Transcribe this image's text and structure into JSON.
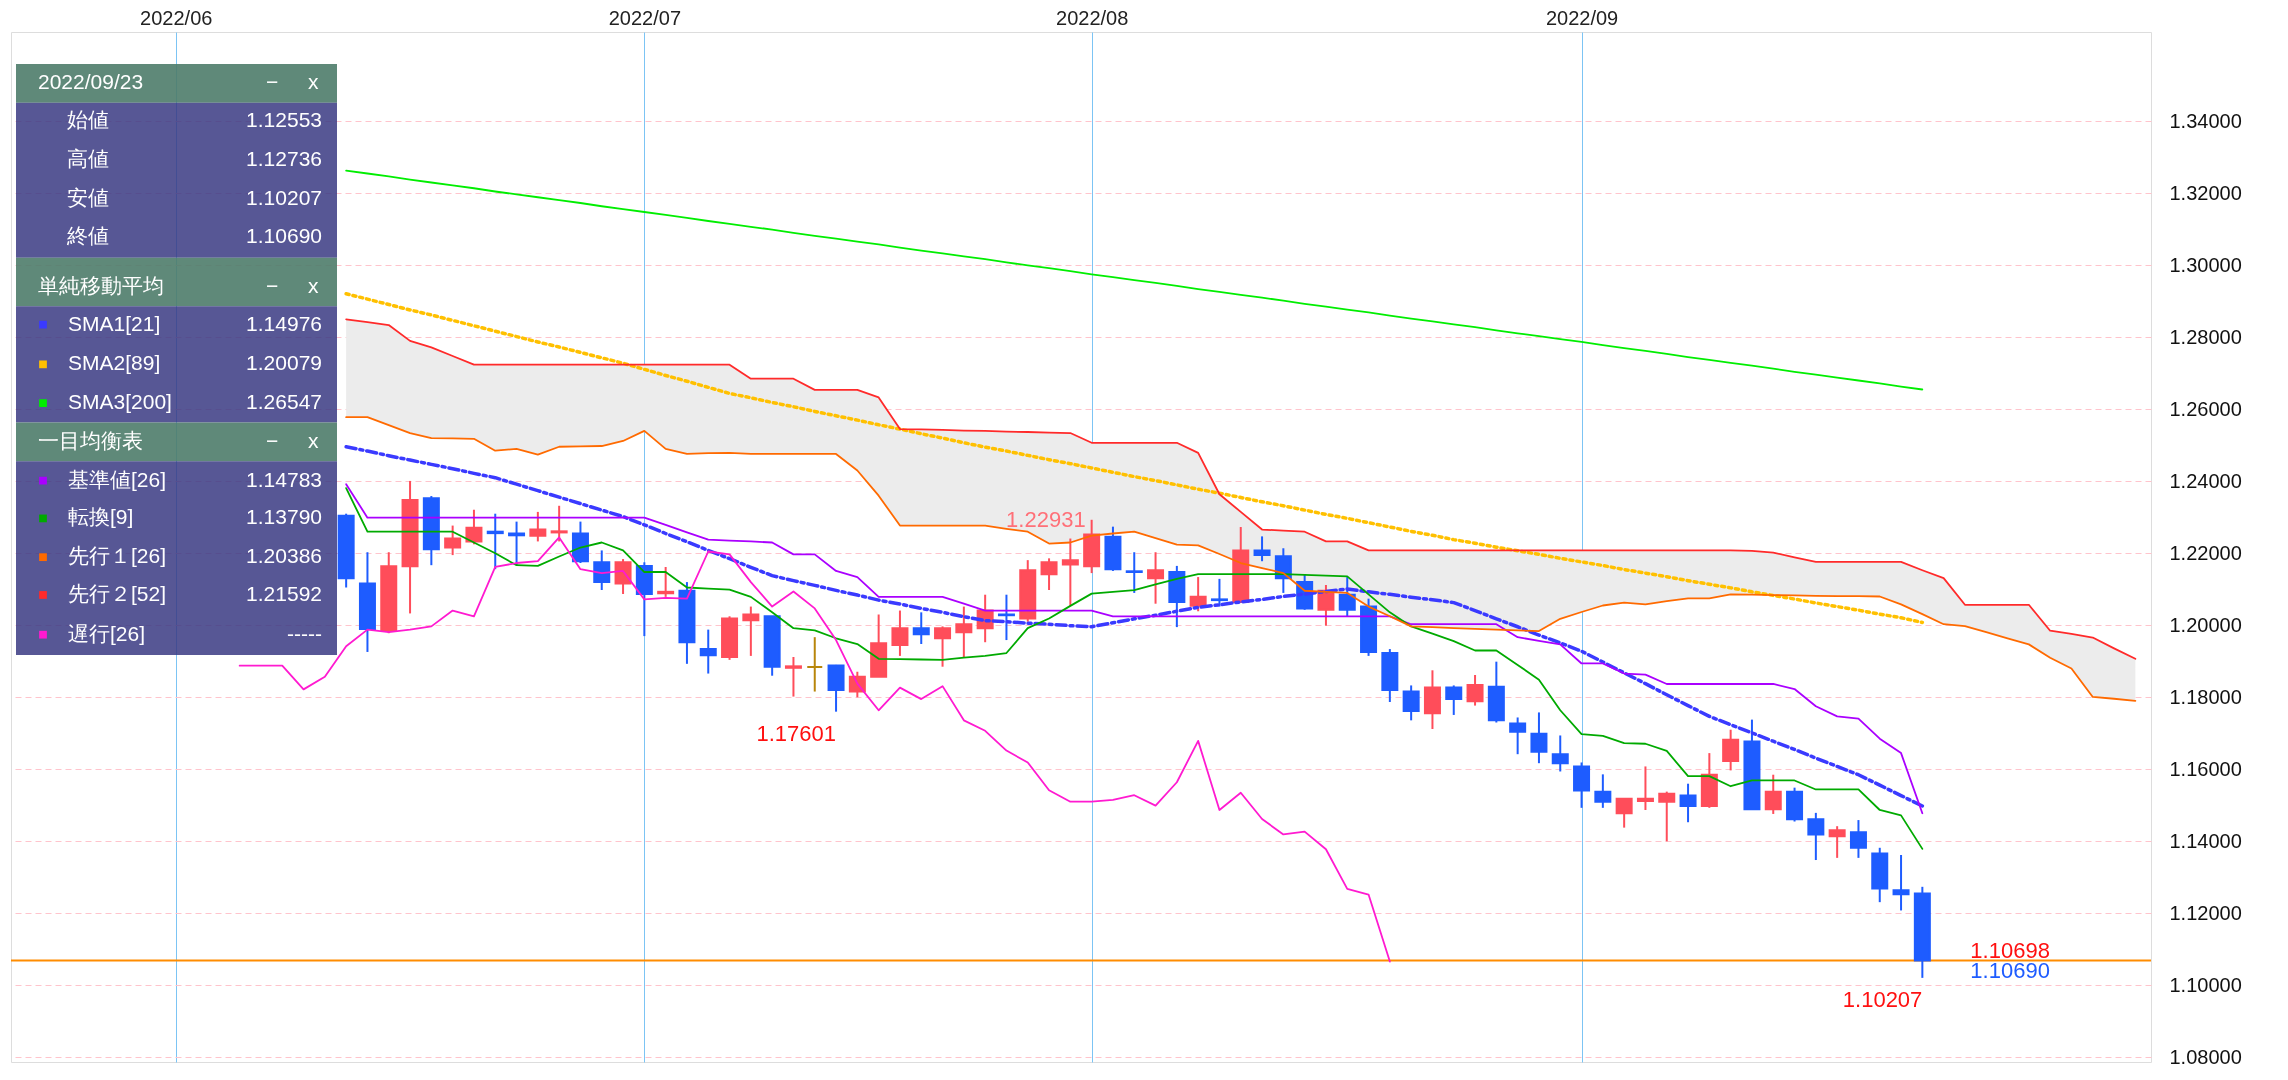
{
  "chart_data": {
    "type": "candlestick",
    "categories": [
      null,
      null,
      null,
      null,
      null,
      null,
      null,
      "2022/06",
      null,
      null,
      null,
      null,
      null,
      null,
      null,
      null,
      null,
      null,
      null,
      null,
      null,
      null,
      null,
      null,
      null,
      null,
      null,
      null,
      null,
      "2022/07",
      null,
      null,
      null,
      null,
      null,
      null,
      null,
      null,
      null,
      null,
      null,
      null,
      null,
      null,
      null,
      null,
      null,
      null,
      null,
      null,
      "2022/08",
      null,
      null,
      null,
      null,
      null,
      null,
      null,
      null,
      null,
      null,
      null,
      null,
      null,
      null,
      null,
      null,
      null,
      null,
      null,
      null,
      null,
      null,
      "2022/09",
      null,
      null,
      null,
      null,
      null,
      null,
      null,
      null,
      null,
      null,
      null,
      null,
      null,
      null,
      null,
      null,
      null,
      null,
      null,
      null,
      null,
      null,
      null,
      null,
      null,
      null
    ],
    "ylim": [
      1.0787,
      1.3648
    ],
    "yticks": [
      {
        "value": 1.08,
        "label": "1.08000"
      },
      {
        "value": 1.1,
        "label": "1.10000"
      },
      {
        "value": 1.12,
        "label": "1.12000"
      },
      {
        "value": 1.14,
        "label": "1.14000"
      },
      {
        "value": 1.16,
        "label": "1.16000"
      },
      {
        "value": 1.18,
        "label": "1.18000"
      },
      {
        "value": 1.2,
        "label": "1.20000"
      },
      {
        "value": 1.22,
        "label": "1.22000"
      },
      {
        "value": 1.24,
        "label": "1.24000"
      },
      {
        "value": 1.26,
        "label": "1.26000"
      },
      {
        "value": 1.28,
        "label": "1.28000"
      },
      {
        "value": 1.3,
        "label": "1.30000"
      },
      {
        "value": 1.32,
        "label": "1.32000"
      },
      {
        "value": 1.34,
        "label": "1.34000"
      }
    ],
    "grid": true,
    "legend": "top left",
    "ohlc": [
      null,
      null,
      null,
      null,
      null,
      null,
      null,
      null,
      null,
      null,
      null,
      null,
      null,
      null,
      null,
      [
        1.2304,
        1.231,
        1.2105,
        1.2131
      ],
      [
        1.2116,
        1.2203,
        1.1926,
        1.199
      ],
      [
        1.1984,
        1.2203,
        1.1978,
        1.2164
      ],
      [
        1.2164,
        1.2401,
        1.2033,
        1.2348
      ],
      [
        1.2353,
        1.2359,
        1.2167,
        1.2211
      ],
      [
        1.2216,
        1.2277,
        1.2195,
        1.2241
      ],
      [
        1.2233,
        1.2321,
        1.2225,
        1.2271
      ],
      [
        1.226,
        1.231,
        1.2156,
        1.2256
      ],
      [
        1.2255,
        1.2288,
        1.2167,
        1.225
      ],
      [
        1.2249,
        1.2315,
        1.2233,
        1.2266
      ],
      [
        1.2258,
        1.2332,
        1.2233,
        1.2261
      ],
      [
        1.2255,
        1.2288,
        1.2173,
        1.2178
      ],
      [
        1.2175,
        1.2208,
        1.2098,
        1.212
      ],
      [
        1.2116,
        1.2184,
        1.2087,
        1.2175
      ],
      [
        1.2165,
        1.2175,
        1.197,
        1.2087
      ],
      [
        1.2089,
        1.2162,
        1.2079,
        1.2093
      ],
      [
        1.2096,
        1.212,
        1.1893,
        1.1953
      ],
      [
        1.1934,
        1.1988,
        1.1866,
        1.1917
      ],
      [
        1.1912,
        1.2025,
        1.1904,
        1.2019
      ],
      [
        1.2014,
        1.2052,
        1.1915,
        1.203
      ],
      [
        1.2025,
        1.2025,
        1.186,
        1.1885
      ],
      [
        1.1882,
        1.1912,
        1.1802,
        1.1886
      ],
      [
        1.1884,
        1.1967,
        1.1816,
        1.1884
      ],
      [
        1.1888,
        1.189,
        1.17601,
        1.182
      ],
      [
        1.1816,
        1.1871,
        1.18,
        1.1857
      ],
      [
        1.1857,
        1.203,
        1.1857,
        1.195
      ],
      [
        1.1945,
        1.2041,
        1.1915,
        1.1992
      ],
      [
        1.1992,
        1.2036,
        1.1948,
        1.1975
      ],
      [
        1.1964,
        1.1997,
        1.1885,
        1.1992
      ],
      [
        1.1981,
        1.2052,
        1.191,
        1.2003
      ],
      [
        1.1992,
        1.2085,
        1.1953,
        1.2041
      ],
      [
        1.203,
        1.2085,
        1.1959,
        1.2028
      ],
      [
        1.2019,
        1.2181,
        1.201,
        1.2153
      ],
      [
        1.2142,
        1.2186,
        1.2098,
        1.2175
      ],
      [
        1.2169,
        1.2241,
        1.2054,
        1.2181
      ],
      [
        1.2164,
        1.22931,
        1.2145,
        1.2252
      ],
      [
        1.2246,
        1.2274,
        1.2151,
        1.2156
      ],
      [
        1.215,
        1.2203,
        1.209,
        1.2148
      ],
      [
        1.2131,
        1.2203,
        1.206,
        1.2153
      ],
      [
        1.2148,
        1.2165,
        1.1995,
        1.2065
      ],
      [
        1.2054,
        1.2134,
        1.2039,
        1.2079
      ],
      [
        1.2072,
        1.2129,
        1.2052,
        1.207
      ],
      [
        1.2065,
        1.2273,
        1.2065,
        1.2208
      ],
      [
        1.2208,
        1.2247,
        1.2178,
        1.2195
      ],
      [
        1.2192,
        1.2214,
        1.209,
        1.2131
      ],
      [
        1.212,
        1.2142,
        1.2043,
        1.2047
      ],
      [
        1.2043,
        1.2112,
        1.1999,
        1.2096
      ],
      [
        1.2085,
        1.2134,
        1.2025,
        1.2043
      ],
      [
        1.2052,
        1.2074,
        1.1915,
        1.1926
      ],
      [
        1.1923,
        1.1934,
        1.1787,
        1.182
      ],
      [
        1.1816,
        1.1833,
        1.1736,
        1.1762
      ],
      [
        1.1756,
        1.1875,
        1.1712,
        1.1827
      ],
      [
        1.1827,
        1.1833,
        1.1751,
        1.1795
      ],
      [
        1.1789,
        1.1862,
        1.1777,
        1.1834
      ],
      [
        1.1829,
        1.1899,
        1.173,
        1.1736
      ],
      [
        1.1727,
        1.1744,
        1.1642,
        1.1704
      ],
      [
        1.1699,
        1.1758,
        1.1617,
        1.1649
      ],
      [
        1.1642,
        1.1694,
        1.1594,
        1.1617
      ],
      [
        1.1608,
        1.1619,
        1.1493,
        1.1541
      ],
      [
        1.1538,
        1.1586,
        1.1493,
        1.151
      ],
      [
        1.1478,
        1.1518,
        1.1438,
        1.1518
      ],
      [
        1.1512,
        1.1608,
        1.1487,
        1.1518
      ],
      [
        1.151,
        1.1538,
        1.14,
        1.1532
      ],
      [
        1.1527,
        1.156,
        1.1453,
        1.1498
      ],
      [
        1.1498,
        1.1645,
        1.1493,
        1.1585
      ],
      [
        1.1623,
        1.171,
        1.1597,
        1.1682
      ],
      [
        1.1677,
        1.1738,
        1.1489,
        1.1489
      ],
      [
        1.1489,
        1.1585,
        1.1476,
        1.1538
      ],
      [
        1.1538,
        1.1549,
        1.1455,
        1.1461
      ],
      [
        1.1461,
        1.1479,
        1.1348,
        1.1419
      ],
      [
        1.1414,
        1.1442,
        1.1354,
        1.1431
      ],
      [
        1.1425,
        1.1459,
        1.1354,
        1.1382
      ],
      [
        1.1366,
        1.1382,
        1.1231,
        1.1269
      ],
      [
        1.1264,
        1.1362,
        1.1208,
        1.1253
      ],
      [
        1.12553,
        1.12736,
        1.10207,
        1.1069
      ],
      null,
      null,
      null,
      null,
      null,
      null,
      null,
      null,
      null,
      null
    ],
    "colors": [
      null,
      null,
      null,
      null,
      null,
      null,
      null,
      null,
      null,
      null,
      null,
      null,
      null,
      null,
      null,
      "#1e5cff",
      "#1e5cff",
      "#ff4d5a",
      "#ff4d5a",
      "#1e5cff",
      "#ff4d5a",
      "#ff4d5a",
      "#1e5cff",
      "#1e5cff",
      "#ff4d5a",
      "#ff4d5a",
      "#1e5cff",
      "#1e5cff",
      "#ff4d5a",
      "#1e5cff",
      "#ff4d5a",
      "#1e5cff",
      "#1e5cff",
      "#ff4d5a",
      "#ff4d5a",
      "#1e5cff",
      "#ff4d5a",
      "#b8860b",
      "#1e5cff",
      "#ff4d5a",
      "#ff4d5a",
      "#ff4d5a",
      "#1e5cff",
      "#ff4d5a",
      "#ff4d5a",
      "#ff4d5a",
      "#1e5cff",
      "#ff4d5a",
      "#ff4d5a",
      "#ff4d5a",
      "#ff4d5a",
      "#1e5cff",
      "#1e5cff",
      "#ff4d5a",
      "#1e5cff",
      "#ff4d5a",
      "#1e5cff",
      "#ff4d5a",
      "#1e5cff",
      "#1e5cff",
      "#1e5cff",
      "#ff4d5a",
      "#1e5cff",
      "#1e5cff",
      "#1e5cff",
      "#1e5cff",
      "#ff4d5a",
      "#1e5cff",
      "#ff4d5a",
      "#1e5cff",
      "#1e5cff",
      "#1e5cff",
      "#1e5cff",
      "#1e5cff",
      "#1e5cff",
      "#ff4d5a",
      "#ff4d5a",
      "#ff4d5a",
      "#1e5cff",
      "#ff4d5a",
      "#ff4d5a",
      "#1e5cff",
      "#ff4d5a",
      "#1e5cff",
      "#1e5cff",
      "#ff4d5a",
      "#1e5cff",
      "#1e5cff",
      "#1e5cff",
      "#1e5cff",
      null,
      null,
      null,
      null,
      null,
      null,
      null,
      null,
      null,
      null
    ],
    "series": [
      {
        "type": "line",
        "name": "SMA1[21]",
        "color": "#3a3aff",
        "line_style": "dashed",
        "values": [
          null,
          null,
          null,
          null,
          null,
          null,
          null,
          null,
          null,
          null,
          null,
          null,
          null,
          null,
          null,
          1.2496,
          1.2484,
          1.2471,
          1.2459,
          1.2447,
          1.2435,
          1.2422,
          1.241,
          1.2392,
          1.2374,
          1.2356,
          1.2338,
          1.232,
          1.2302,
          1.2279,
          1.2255,
          1.2232,
          1.2208,
          1.2185,
          1.2161,
          1.2138,
          1.2124,
          1.2111,
          1.2097,
          1.2084,
          1.207,
          1.2059,
          1.2047,
          1.2036,
          1.2024,
          1.2013,
          1.201,
          1.2006,
          1.2003,
          1.1999,
          1.1996,
          1.2007,
          1.2018,
          1.2028,
          1.2039,
          1.205,
          1.2057,
          1.2065,
          1.2072,
          1.208,
          1.2087,
          1.2094,
          1.2101,
          1.2093,
          1.2086,
          1.2078,
          1.2071,
          1.2063,
          1.2041,
          1.2018,
          1.1996,
          1.1973,
          1.1951,
          1.1928,
          1.1898,
          1.1868,
          1.1838,
          1.1807,
          1.1777,
          1.1747,
          1.1724,
          1.1701,
          1.1678,
          1.1655,
          1.1631,
          1.1608,
          1.1585,
          1.1556,
          1.1527,
          1.1498,
          null,
          null,
          null,
          null,
          null,
          null,
          null,
          null,
          null,
          null
        ]
      },
      {
        "type": "line",
        "name": "SMA2[89]",
        "color": "#ffc000",
        "line_style": "dotted",
        "values": [
          null,
          null,
          null,
          null,
          null,
          null,
          null,
          null,
          null,
          null,
          null,
          null,
          null,
          null,
          null,
          1.2921,
          1.2906,
          1.2891,
          1.2876,
          1.2862,
          1.2847,
          1.2832,
          1.2817,
          1.2802,
          1.2787,
          1.2773,
          1.2758,
          1.2743,
          1.2728,
          1.2711,
          1.2694,
          1.2678,
          1.2661,
          1.2644,
          1.2632,
          1.2619,
          1.2607,
          1.2594,
          1.2582,
          1.257,
          1.2557,
          1.2545,
          1.2532,
          1.252,
          1.2507,
          1.2495,
          1.2484,
          1.2472,
          1.246,
          1.2449,
          1.2437,
          1.2425,
          1.2413,
          1.2402,
          1.239,
          1.2378,
          1.2367,
          1.2355,
          1.2343,
          1.2332,
          1.232,
          1.2308,
          1.2297,
          1.2285,
          1.2273,
          1.2261,
          1.225,
          1.2238,
          1.2228,
          1.2217,
          1.2207,
          1.2197,
          1.2186,
          1.2176,
          1.2166,
          1.2155,
          1.2145,
          1.2135,
          1.2124,
          1.2114,
          1.2104,
          1.2093,
          1.2083,
          1.2073,
          1.2062,
          1.2052,
          1.2042,
          1.2031,
          1.2021,
          1.2008,
          null,
          null,
          null,
          null,
          null,
          null,
          null,
          null,
          null,
          null
        ]
      },
      {
        "type": "line",
        "name": "SMA3[200]",
        "color": "#00ee00",
        "line_style": "solid",
        "values": [
          null,
          null,
          null,
          null,
          null,
          null,
          null,
          null,
          null,
          null,
          null,
          null,
          null,
          null,
          null,
          1.3263,
          1.3255,
          1.3247,
          1.3238,
          1.323,
          1.3222,
          1.3214,
          1.3205,
          1.3197,
          1.3189,
          1.3181,
          1.3173,
          1.3164,
          1.3156,
          1.3148,
          1.314,
          1.3132,
          1.3123,
          1.3115,
          1.3107,
          1.3099,
          1.309,
          1.3082,
          1.3074,
          1.3066,
          1.3058,
          1.3049,
          1.3041,
          1.3033,
          1.3025,
          1.3017,
          1.3008,
          1.3,
          1.2992,
          1.2984,
          1.2975,
          1.2967,
          1.2959,
          1.2951,
          1.2943,
          1.2934,
          1.2926,
          1.2918,
          1.291,
          1.2902,
          1.2893,
          1.2885,
          1.2877,
          1.2869,
          1.286,
          1.2852,
          1.2844,
          1.2836,
          1.2828,
          1.2819,
          1.2811,
          1.2803,
          1.2795,
          1.2787,
          1.2778,
          1.277,
          1.2762,
          1.2754,
          1.2745,
          1.2737,
          1.2729,
          1.2721,
          1.2713,
          1.2704,
          1.2696,
          1.2688,
          1.268,
          1.2672,
          1.2663,
          1.2655,
          null,
          null,
          null,
          null,
          null,
          null,
          null,
          null,
          null,
          null
        ]
      },
      {
        "type": "line",
        "name": "基準値[26]",
        "color": "#aa00ff",
        "line_style": "solid",
        "values": [
          null,
          null,
          null,
          null,
          null,
          null,
          null,
          null,
          null,
          null,
          null,
          null,
          null,
          null,
          null,
          1.2392,
          1.2299,
          1.2299,
          1.2299,
          1.2299,
          1.2299,
          1.2299,
          1.2299,
          1.2299,
          1.2299,
          1.2299,
          1.2299,
          1.2299,
          1.2299,
          1.2299,
          1.2279,
          1.2258,
          1.2238,
          1.2235,
          1.2233,
          1.223,
          1.2197,
          1.2197,
          1.2151,
          1.2134,
          1.2079,
          1.2079,
          1.2079,
          1.2079,
          1.206,
          1.2041,
          1.2041,
          1.2041,
          1.2041,
          1.2041,
          1.2041,
          1.2025,
          1.2025,
          1.2025,
          1.2025,
          1.2025,
          1.2025,
          1.2025,
          1.2025,
          1.2025,
          1.2025,
          1.2025,
          1.2025,
          1.2025,
          1.2025,
          1.2003,
          1.2003,
          1.2003,
          1.2003,
          1.2003,
          1.1967,
          1.1957,
          1.1947,
          1.1894,
          1.1894,
          1.1866,
          1.1863,
          1.1837,
          1.1837,
          1.1837,
          1.1837,
          1.1837,
          1.1837,
          1.1823,
          1.1775,
          1.1747,
          1.1741,
          1.1685,
          1.1645,
          1.1478,
          null,
          null,
          null,
          null,
          null,
          null,
          null,
          null,
          null,
          null
        ]
      },
      {
        "type": "line",
        "name": "転換[9]",
        "color": "#00aa00",
        "line_style": "solid",
        "values": [
          null,
          null,
          null,
          null,
          null,
          null,
          null,
          null,
          null,
          null,
          null,
          null,
          null,
          null,
          null,
          1.2381,
          1.226,
          1.226,
          1.226,
          1.226,
          1.226,
          1.223,
          1.22,
          1.2167,
          1.2165,
          1.2191,
          1.2216,
          1.223,
          1.2208,
          1.2148,
          1.2148,
          1.2105,
          1.2102,
          1.2099,
          1.2079,
          1.2036,
          1.1992,
          1.1986,
          1.1964,
          1.1948,
          1.1907,
          1.1906,
          1.1905,
          1.1904,
          1.191,
          1.1915,
          1.1923,
          1.1992,
          1.2019,
          1.2054,
          1.2088,
          1.2093,
          1.2098,
          1.2114,
          1.2129,
          1.2142,
          1.2142,
          1.2142,
          1.2142,
          1.2142,
          1.214,
          1.2138,
          1.2136,
          1.2086,
          1.2036,
          1.1997,
          1.1977,
          1.1956,
          1.193,
          1.193,
          1.189,
          1.1849,
          1.1764,
          1.1698,
          1.1693,
          1.1673,
          1.1671,
          1.1651,
          1.1581,
          1.1581,
          1.1553,
          1.1569,
          1.1569,
          1.1569,
          1.1544,
          1.1544,
          1.1544,
          1.1487,
          1.1472,
          1.1379,
          null,
          null,
          null,
          null,
          null,
          null,
          null,
          null,
          null,
          null
        ]
      },
      {
        "type": "line",
        "name": "先行１[26]",
        "color": "#ff6a00",
        "line_style": "solid",
        "values": [
          null,
          null,
          null,
          null,
          null,
          null,
          null,
          null,
          null,
          null,
          null,
          null,
          null,
          null,
          null,
          1.2578,
          1.2578,
          1.2556,
          1.2534,
          1.252,
          1.2519,
          1.2518,
          1.2485,
          1.249,
          1.2474,
          1.2496,
          1.2497,
          1.2498,
          1.2512,
          1.254,
          1.249,
          1.2476,
          1.2478,
          1.2479,
          1.2476,
          1.2476,
          1.2476,
          1.2476,
          1.2476,
          1.243,
          1.236,
          1.2277,
          1.2277,
          1.2277,
          1.2277,
          1.2277,
          1.2268,
          1.226,
          1.2227,
          1.223,
          1.2249,
          1.2255,
          1.226,
          1.2242,
          1.2224,
          1.2222,
          1.2198,
          1.2173,
          1.2159,
          1.2145,
          1.2096,
          1.2093,
          1.209,
          1.2052,
          1.2025,
          1.1997,
          1.1995,
          1.1992,
          1.199,
          1.1988,
          1.1986,
          1.1984,
          1.2018,
          1.2037,
          1.2055,
          1.2063,
          1.2058,
          1.2067,
          1.2075,
          1.2075,
          1.2086,
          1.2085,
          1.2084,
          1.2083,
          1.2082,
          1.2081,
          1.2081,
          1.208,
          1.2058,
          1.2031,
          1.2003,
          1.1998,
          1.1981,
          1.1964,
          1.1947,
          1.191,
          1.188,
          1.1801,
          1.1796,
          1.179
        ]
      },
      {
        "type": "line",
        "name": "先行２[52]",
        "color": "#ff2a2a",
        "line_style": "solid",
        "values": [
          null,
          null,
          null,
          null,
          null,
          null,
          null,
          null,
          null,
          null,
          null,
          null,
          null,
          null,
          null,
          1.285,
          1.2842,
          1.2834,
          1.279,
          1.2772,
          1.2748,
          1.2724,
          1.2724,
          1.2724,
          1.2724,
          1.2724,
          1.2724,
          1.2724,
          1.2724,
          1.2724,
          1.2724,
          1.2724,
          1.2724,
          1.2724,
          1.2685,
          1.2685,
          1.2685,
          1.2654,
          1.2654,
          1.2654,
          1.2633,
          1.2545,
          1.2544,
          1.2543,
          1.2541,
          1.254,
          1.2538,
          1.2537,
          1.2535,
          1.2534,
          1.2507,
          1.2507,
          1.2507,
          1.2507,
          1.2507,
          1.2479,
          1.2364,
          1.2315,
          1.2266,
          1.2263,
          1.226,
          1.2233,
          1.2233,
          1.2208,
          1.2208,
          1.2208,
          1.2208,
          1.2208,
          1.2208,
          1.2208,
          1.2208,
          1.2208,
          1.2208,
          1.2208,
          1.2208,
          1.2208,
          1.2208,
          1.2208,
          1.2208,
          1.2208,
          1.2208,
          1.2207,
          1.2202,
          1.2189,
          1.2176,
          1.2176,
          1.2176,
          1.2176,
          1.2176,
          1.2153,
          1.2131,
          1.2057,
          1.2057,
          1.2057,
          1.2057,
          1.1985,
          1.1976,
          1.1966,
          1.1936,
          1.1907
        ],
        "upper": [
          null,
          null,
          null,
          null,
          null,
          null,
          null,
          null,
          null,
          null,
          null,
          null,
          null,
          null,
          null,
          1.285,
          1.2842,
          1.2834,
          1.279,
          1.2772,
          1.2748,
          1.2724,
          1.2724,
          1.2724,
          1.2724,
          1.2724,
          1.2724,
          1.2724,
          1.2724,
          1.2724,
          1.2724,
          1.2724,
          1.2724,
          1.2724,
          1.2685,
          1.2685,
          1.2685,
          1.2654,
          1.2654,
          1.2654,
          1.2633,
          1.2545,
          1.2544,
          1.2543,
          1.2541,
          1.254,
          1.2538,
          1.2537,
          1.2535,
          1.2534,
          1.2507,
          1.2507,
          1.2507,
          1.2507,
          1.2507,
          1.2479,
          1.2364,
          1.2315,
          1.2266,
          1.2263,
          1.226,
          1.2233,
          1.2233,
          1.2208,
          1.2208,
          1.2208,
          1.2208,
          1.2208,
          1.2208,
          1.2208,
          1.2208,
          1.2208,
          1.2208,
          1.2208,
          1.2208,
          1.2208,
          1.2208,
          1.2208,
          1.2208,
          1.2208,
          1.2208,
          1.2207,
          1.2202,
          1.2189,
          1.2176,
          1.2176,
          1.2176,
          1.2176,
          1.2176,
          1.2153,
          1.2131,
          1.2057,
          1.2057,
          1.2057,
          1.2057,
          1.1985,
          1.1976,
          1.1966,
          1.1936,
          1.1907
        ],
        "lower": [
          null,
          null,
          null,
          null,
          null,
          null,
          null,
          null,
          null,
          null,
          null,
          null,
          null,
          null,
          null,
          1.2578,
          1.2578,
          1.2556,
          1.2534,
          1.252,
          1.2519,
          1.2518,
          1.2485,
          1.249,
          1.2474,
          1.2496,
          1.2497,
          1.2498,
          1.2512,
          1.254,
          1.249,
          1.2476,
          1.2478,
          1.2479,
          1.2476,
          1.2476,
          1.2476,
          1.2476,
          1.2476,
          1.243,
          1.236,
          1.2277,
          1.2277,
          1.2277,
          1.2277,
          1.2277,
          1.2268,
          1.226,
          1.2227,
          1.223,
          1.2249,
          1.2255,
          1.226,
          1.2242,
          1.2224,
          1.2222,
          1.2198,
          1.2173,
          1.2159,
          1.2145,
          1.2096,
          1.2093,
          1.209,
          1.2052,
          1.2025,
          1.1997,
          1.1995,
          1.1992,
          1.199,
          1.1988,
          1.1986,
          1.1984,
          1.2018,
          1.2037,
          1.2055,
          1.2063,
          1.2058,
          1.2067,
          1.2075,
          1.2075,
          1.2086,
          1.2085,
          1.2084,
          1.2083,
          1.2082,
          1.2081,
          1.2081,
          1.208,
          1.2058,
          1.2031,
          1.2003,
          1.1998,
          1.1981,
          1.1964,
          1.1947,
          1.191,
          1.188,
          1.1801,
          1.1796,
          1.179
        ]
      },
      {
        "type": "line",
        "name": "遅行[26]",
        "color": "#ff1ad0",
        "line_style": "solid",
        "values": [
          null,
          null,
          null,
          null,
          null,
          null,
          null,
          null,
          null,
          null,
          1.1888,
          1.1888,
          1.1888,
          1.1822,
          1.1857,
          1.1942,
          1.1988,
          1.1981,
          1.1988,
          1.1997,
          1.2041,
          1.2025,
          1.2162,
          1.2173,
          1.2178,
          1.2244,
          1.2156,
          1.2145,
          1.2151,
          1.2072,
          1.2076,
          1.2074,
          1.2205,
          1.2197,
          1.212,
          1.2052,
          1.2094,
          1.2047,
          1.1959,
          1.1838,
          1.1764,
          1.1827,
          1.1795,
          1.1831,
          1.1736,
          1.1707,
          1.1652,
          1.1619,
          1.1542,
          1.151,
          1.151,
          1.1515,
          1.1528,
          1.1499,
          1.1564,
          1.1679,
          1.1487,
          1.1535,
          1.1462,
          1.1419,
          1.1427,
          1.1378,
          1.1268,
          1.1252,
          1.1066,
          null,
          null,
          null,
          null,
          null,
          null,
          null,
          null,
          null,
          null,
          null,
          null,
          null,
          null,
          null,
          null,
          null,
          null,
          null,
          null,
          null,
          null,
          null,
          null,
          null,
          null,
          null,
          null,
          null,
          null,
          null,
          null,
          null,
          null,
          null
        ]
      }
    ],
    "ref_lines": [
      {
        "axis": "y",
        "value": 1.1069,
        "color": "#ff8c00"
      }
    ],
    "annotations": [
      "2022/09/23",
      "始値",
      "1.12553",
      "高値",
      "1.12736",
      "安値",
      "1.10207",
      "終値",
      "1.10690",
      "単純移動平均",
      "一目均衡表",
      "−",
      "x",
      "1.14976",
      "1.20079",
      "1.26547",
      "1.14783",
      "1.13790",
      "1.20386",
      "1.21592",
      "-----",
      "1.22931",
      "1.17601",
      "1.10207",
      "1.10698",
      "1.10690"
    ]
  }
}
